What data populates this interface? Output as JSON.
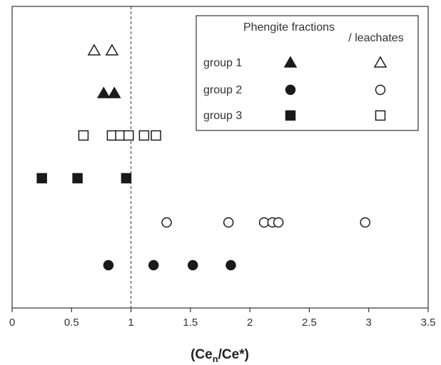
{
  "chart_data": {
    "type": "scatter",
    "title": "",
    "xlabel": {
      "main": "(Ce",
      "sub": "n",
      "rest": "/Ce*)"
    },
    "ylabel": "",
    "xlim": [
      0,
      3.5
    ],
    "xticks": [
      0,
      0.5,
      1,
      1.5,
      2,
      2.5,
      3,
      3.5
    ],
    "xtick_labels": [
      "0",
      "0.5",
      "1",
      "1.5",
      "2",
      "2.5",
      "3",
      "3.5"
    ],
    "grid": false,
    "reference_line": {
      "x": 1,
      "style": "dashed"
    },
    "legend": {
      "placement": "top-right",
      "col_headers": [
        "Phengite fractions",
        "/ leachates"
      ],
      "rows": [
        "group 1",
        "group 2",
        "group 3"
      ]
    },
    "series": [
      {
        "group": "group 1",
        "kind": "leachates",
        "marker": "triangle",
        "filled": false,
        "row": 1,
        "x": [
          0.69,
          0.84
        ]
      },
      {
        "group": "group 1",
        "kind": "fractions",
        "marker": "triangle",
        "filled": true,
        "row": 2,
        "x": [
          0.77,
          0.86
        ]
      },
      {
        "group": "group 3",
        "kind": "leachates",
        "marker": "square",
        "filled": false,
        "row": 3,
        "x": [
          0.6,
          0.84,
          0.91,
          0.98,
          1.11,
          1.21
        ]
      },
      {
        "group": "group 3",
        "kind": "fractions",
        "marker": "square",
        "filled": true,
        "row": 4,
        "x": [
          0.25,
          0.55,
          0.96
        ]
      },
      {
        "group": "group 2",
        "kind": "leachates",
        "marker": "circle",
        "filled": false,
        "row": 5,
        "x": [
          1.3,
          1.82,
          2.12,
          2.19,
          2.24,
          2.97
        ]
      },
      {
        "group": "group 2",
        "kind": "fractions",
        "marker": "circle",
        "filled": true,
        "row": 6,
        "x": [
          0.81,
          1.19,
          1.52,
          1.84
        ]
      }
    ],
    "colors": {
      "marker": "#1a1a1a",
      "axis": "#333333"
    }
  }
}
